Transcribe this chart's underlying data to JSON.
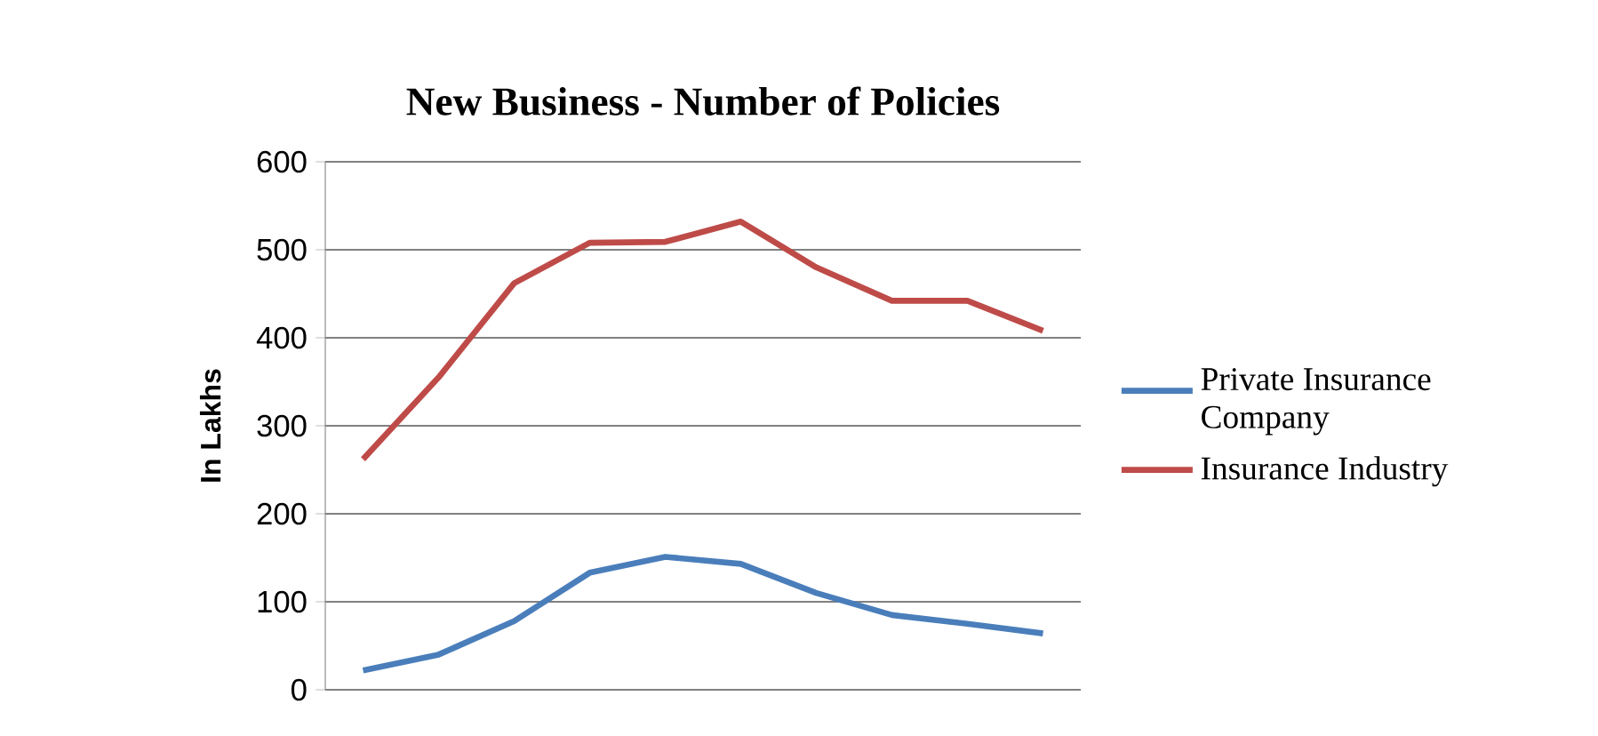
{
  "chart_data": {
    "type": "line",
    "title": "New Business - Number of Policies",
    "ylabel": "In Lakhs",
    "categories": [
      null,
      null,
      null,
      null,
      null,
      null,
      null,
      null,
      null,
      null
    ],
    "series": [
      {
        "name": "Private Insurance Company",
        "color": "#4a7ebb",
        "values": [
          22,
          40,
          78,
          133,
          151,
          143,
          110,
          85,
          75,
          64
        ]
      },
      {
        "name": "Insurance Industry",
        "color": "#be4b48",
        "values": [
          262,
          355,
          462,
          508,
          509,
          532,
          480,
          442,
          442,
          408
        ]
      }
    ],
    "ylim": [
      0,
      600
    ],
    "yticks": [
      0,
      100,
      200,
      300,
      400,
      500,
      600
    ],
    "grid": "y",
    "legend": "right",
    "tick_labels": "y",
    "marker": "none",
    "line_style": "solid"
  }
}
